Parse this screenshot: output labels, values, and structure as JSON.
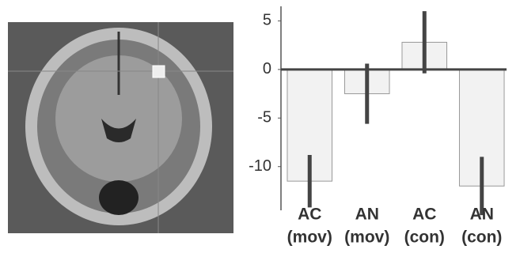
{
  "chart_data": {
    "type": "bar",
    "categories": [
      [
        "AC",
        "(mov)"
      ],
      [
        "AN",
        "(mov)"
      ],
      [
        "AC",
        "(con)"
      ],
      [
        "AN",
        "(con)"
      ]
    ],
    "values": [
      -11.5,
      -2.5,
      2.8,
      -12
    ],
    "errors": [
      2.7,
      3.1,
      3.2,
      3.0
    ],
    "color": "#f2f2f2",
    "error_color": "#444444",
    "ylim": [
      -14.5,
      6.5
    ],
    "yticks": [
      5,
      0,
      -5,
      -10
    ]
  }
}
